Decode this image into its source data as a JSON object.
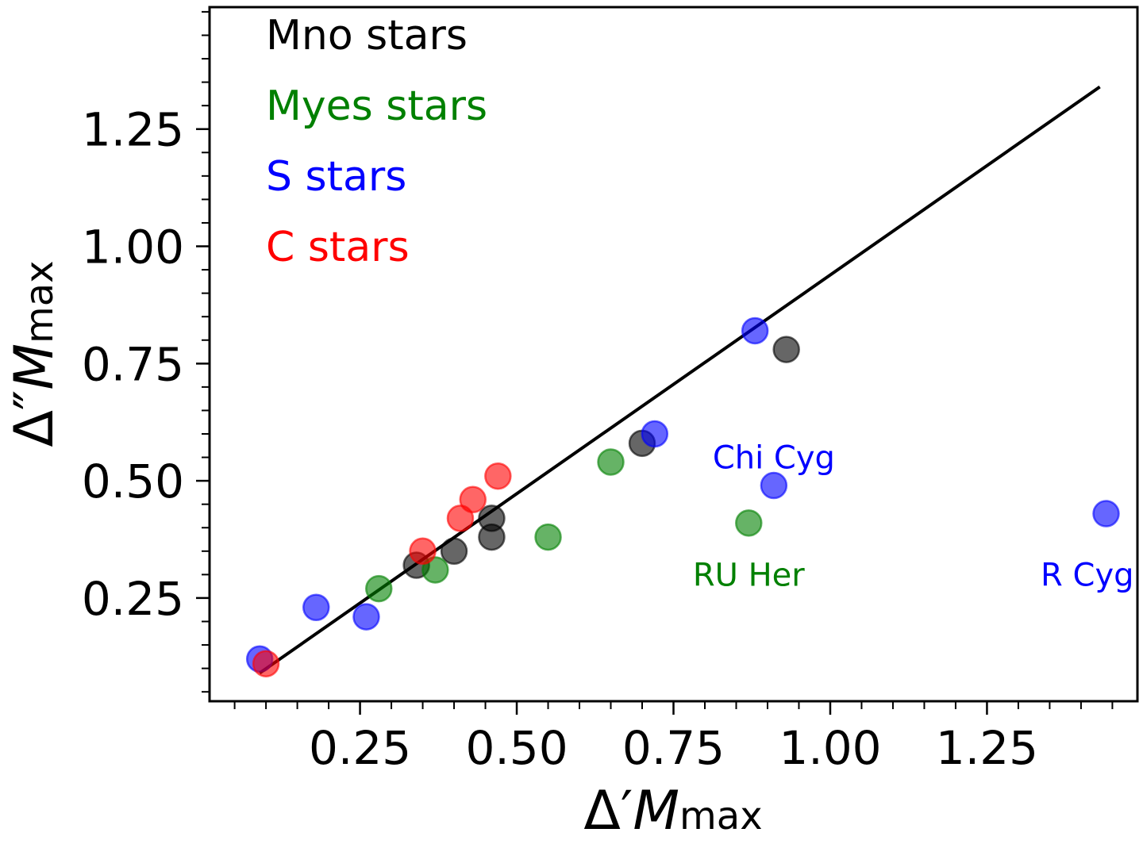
{
  "chart_data": {
    "type": "scatter",
    "title": "",
    "xlabel": "Δ′M_max",
    "ylabel": "Δ″M_max",
    "xlabel_parts": {
      "delta": "Δ",
      "prime": "′",
      "m": "M",
      "sub": "max"
    },
    "ylabel_parts": {
      "delta": "Δ",
      "prime": "″",
      "m": "M",
      "sub": "max"
    },
    "xlim": [
      0.01,
      1.49
    ],
    "ylim": [
      0.03,
      1.51
    ],
    "x_ticks": [
      "0.25",
      "0.50",
      "0.75",
      "1.00",
      "1.25"
    ],
    "x_tick_values": [
      0.25,
      0.5,
      0.75,
      1.0,
      1.25
    ],
    "y_ticks": [
      "0.25",
      "0.50",
      "0.75",
      "1.00",
      "1.25"
    ],
    "y_tick_values": [
      0.25,
      0.5,
      0.75,
      1.0,
      1.25
    ],
    "minor_tick_step": 0.05,
    "grid": false,
    "legend_position": "top-left",
    "fit_line": {
      "x": [
        0.09,
        1.43
      ],
      "y": [
        0.09,
        1.34
      ],
      "color": "#000000"
    },
    "series": [
      {
        "name": "Mno stars",
        "color": "#000000",
        "points": [
          {
            "x": 0.34,
            "y": 0.32
          },
          {
            "x": 0.4,
            "y": 0.35
          },
          {
            "x": 0.46,
            "y": 0.38
          },
          {
            "x": 0.46,
            "y": 0.42
          },
          {
            "x": 0.7,
            "y": 0.58
          },
          {
            "x": 0.93,
            "y": 0.78
          }
        ]
      },
      {
        "name": "Myes stars",
        "color": "#008000",
        "points": [
          {
            "x": 0.28,
            "y": 0.27
          },
          {
            "x": 0.37,
            "y": 0.31
          },
          {
            "x": 0.55,
            "y": 0.38
          },
          {
            "x": 0.65,
            "y": 0.54
          },
          {
            "x": 0.87,
            "y": 0.41
          }
        ]
      },
      {
        "name": "S stars",
        "color": "#0000ff",
        "points": [
          {
            "x": 0.09,
            "y": 0.12
          },
          {
            "x": 0.18,
            "y": 0.23
          },
          {
            "x": 0.26,
            "y": 0.21
          },
          {
            "x": 0.72,
            "y": 0.6
          },
          {
            "x": 0.88,
            "y": 0.82
          },
          {
            "x": 0.91,
            "y": 0.49
          },
          {
            "x": 1.44,
            "y": 0.43
          }
        ]
      },
      {
        "name": "C stars",
        "color": "#ff0000",
        "points": [
          {
            "x": 0.1,
            "y": 0.11
          },
          {
            "x": 0.35,
            "y": 0.35
          },
          {
            "x": 0.41,
            "y": 0.42
          },
          {
            "x": 0.43,
            "y": 0.46
          },
          {
            "x": 0.47,
            "y": 0.51
          }
        ]
      }
    ],
    "annotations": [
      {
        "text": "Chi Cyg",
        "x": 0.91,
        "y": 0.55,
        "color": "#0000ff"
      },
      {
        "text": "RU Her",
        "x": 0.87,
        "y": 0.3,
        "color": "#008000"
      },
      {
        "text": "R Cyg",
        "x": 1.41,
        "y": 0.3,
        "color": "#0000ff"
      }
    ]
  }
}
